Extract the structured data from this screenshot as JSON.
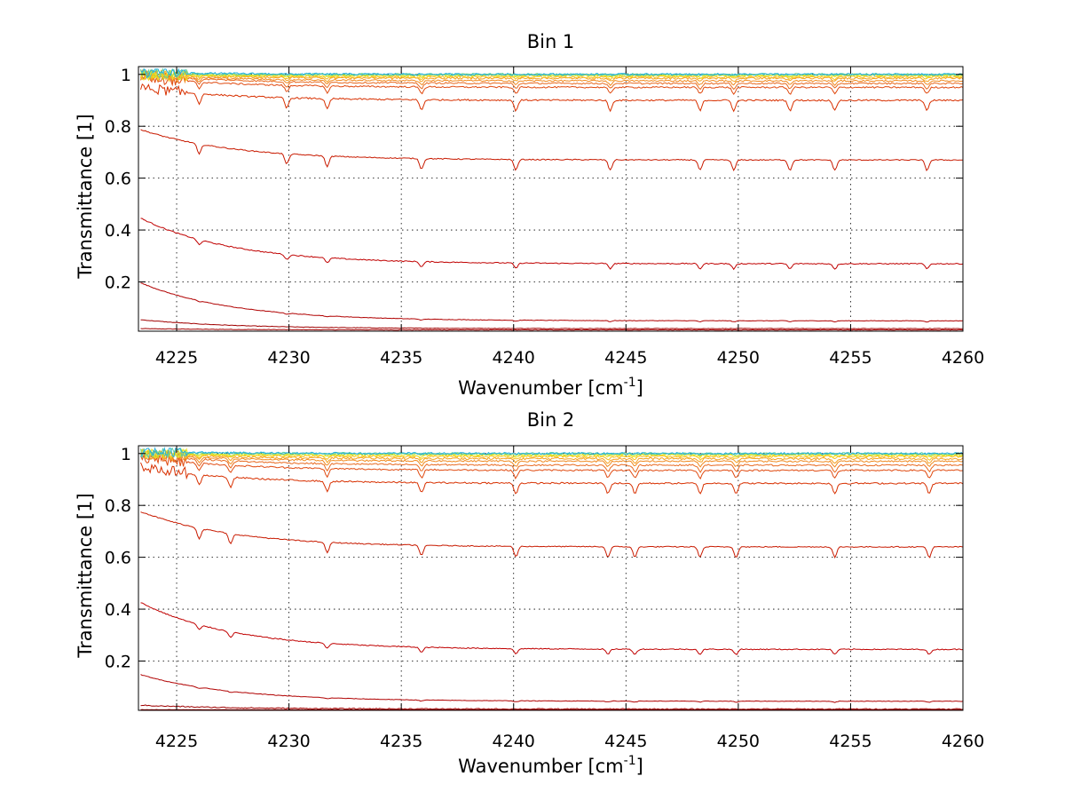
{
  "chart_data": [
    {
      "type": "line",
      "title": "Bin 1",
      "xlabel_base": "Wavenumber [cm",
      "xlabel_sup": "-1",
      "xlabel_close": "]",
      "ylabel": "Transmittance [1]",
      "xlim": [
        4223.3,
        4260
      ],
      "ylim": [
        0.01,
        1.03
      ],
      "xticks": [
        "4225",
        "4230",
        "4235",
        "4240",
        "4245",
        "4250",
        "4255",
        "4260"
      ],
      "yticks": [
        "0.2",
        "0.4",
        "0.6",
        "0.8",
        "1"
      ],
      "grid": true,
      "line_dips": [
        4226,
        4229.9,
        4231.7,
        4235.9,
        4240.1,
        4244.3,
        4248.3,
        4249.8,
        4252.3,
        4254.3,
        4258.4
      ],
      "series": [
        {
          "color": "#a00000",
          "start": 0.02,
          "end": 0.015,
          "noise": 0.001,
          "dip": 0.0
        },
        {
          "color": "#a00000",
          "start": 0.055,
          "end": 0.02,
          "noise": 0.001,
          "dip": 0.0
        },
        {
          "color": "#b00000",
          "start": 0.2,
          "end": 0.05,
          "noise": 0.001,
          "dip": 0.004
        },
        {
          "color": "#c00000",
          "start": 0.45,
          "end": 0.27,
          "noise": 0.002,
          "dip": 0.02
        },
        {
          "color": "#c81a00",
          "start": 0.79,
          "end": 0.67,
          "noise": 0.002,
          "dip": 0.04
        },
        {
          "color": "#d83000",
          "start": 0.95,
          "end": 0.9,
          "noise": 0.003,
          "dip": 0.04
        },
        {
          "color": "#e04a10",
          "start": 0.99,
          "end": 0.95,
          "noise": 0.003,
          "dip": 0.025
        },
        {
          "color": "#e86a20",
          "start": 1.0,
          "end": 0.965,
          "noise": 0.003,
          "dip": 0.02
        },
        {
          "color": "#f08a20",
          "start": 1.0,
          "end": 0.975,
          "noise": 0.003,
          "dip": 0.015
        },
        {
          "color": "#f5a020",
          "start": 1.0,
          "end": 0.985,
          "noise": 0.004,
          "dip": 0.012
        },
        {
          "color": "#f8c020",
          "start": 1.0,
          "end": 0.99,
          "noise": 0.004,
          "dip": 0.008
        },
        {
          "color": "#f0e020",
          "start": 1.0,
          "end": 0.995,
          "noise": 0.004,
          "dip": 0.006
        },
        {
          "color": "#c0e030",
          "start": 1.0,
          "end": 0.998,
          "noise": 0.004,
          "dip": 0.004
        },
        {
          "color": "#60d0a0",
          "start": 1.005,
          "end": 1.0,
          "noise": 0.004,
          "dip": 0.002
        },
        {
          "color": "#20b0e0",
          "start": 1.008,
          "end": 1.0,
          "noise": 0.004,
          "dip": 0.001
        }
      ]
    },
    {
      "type": "line",
      "title": "Bin 2",
      "xlabel_base": "Wavenumber [cm",
      "xlabel_sup": "-1",
      "xlabel_close": "]",
      "ylabel": "Transmittance [1]",
      "xlim": [
        4223.3,
        4260
      ],
      "ylim": [
        0.01,
        1.03
      ],
      "xticks": [
        "4225",
        "4230",
        "4235",
        "4240",
        "4245",
        "4250",
        "4255",
        "4260"
      ],
      "yticks": [
        "0.2",
        "0.4",
        "0.6",
        "0.8",
        "1"
      ],
      "grid": true,
      "line_dips": [
        4226,
        4227.4,
        4231.7,
        4235.9,
        4240.1,
        4244.2,
        4245.4,
        4248.3,
        4249.9,
        4254.3,
        4258.5
      ],
      "series": [
        {
          "color": "#a00000",
          "start": 0.012,
          "end": 0.012,
          "noise": 0.001,
          "dip": 0.0
        },
        {
          "color": "#a00000",
          "start": 0.03,
          "end": 0.015,
          "noise": 0.002,
          "dip": 0.0
        },
        {
          "color": "#b00000",
          "start": 0.15,
          "end": 0.045,
          "noise": 0.001,
          "dip": 0.004
        },
        {
          "color": "#c00000",
          "start": 0.43,
          "end": 0.245,
          "noise": 0.002,
          "dip": 0.02
        },
        {
          "color": "#c81a00",
          "start": 0.78,
          "end": 0.64,
          "noise": 0.002,
          "dip": 0.04
        },
        {
          "color": "#d83000",
          "start": 0.95,
          "end": 0.885,
          "noise": 0.003,
          "dip": 0.04
        },
        {
          "color": "#e04a10",
          "start": 0.99,
          "end": 0.935,
          "noise": 0.003,
          "dip": 0.03
        },
        {
          "color": "#e86a20",
          "start": 1.0,
          "end": 0.955,
          "noise": 0.003,
          "dip": 0.025
        },
        {
          "color": "#f08a20",
          "start": 1.0,
          "end": 0.97,
          "noise": 0.003,
          "dip": 0.02
        },
        {
          "color": "#f5a020",
          "start": 1.0,
          "end": 0.98,
          "noise": 0.004,
          "dip": 0.015
        },
        {
          "color": "#f8c020",
          "start": 1.0,
          "end": 0.988,
          "noise": 0.004,
          "dip": 0.01
        },
        {
          "color": "#f0e020",
          "start": 1.0,
          "end": 0.993,
          "noise": 0.004,
          "dip": 0.006
        },
        {
          "color": "#c0e030",
          "start": 1.0,
          "end": 0.997,
          "noise": 0.004,
          "dip": 0.004
        },
        {
          "color": "#60d0a0",
          "start": 1.005,
          "end": 1.0,
          "noise": 0.004,
          "dip": 0.002
        },
        {
          "color": "#20b0e0",
          "start": 1.008,
          "end": 1.0,
          "noise": 0.004,
          "dip": 0.001
        }
      ]
    }
  ]
}
